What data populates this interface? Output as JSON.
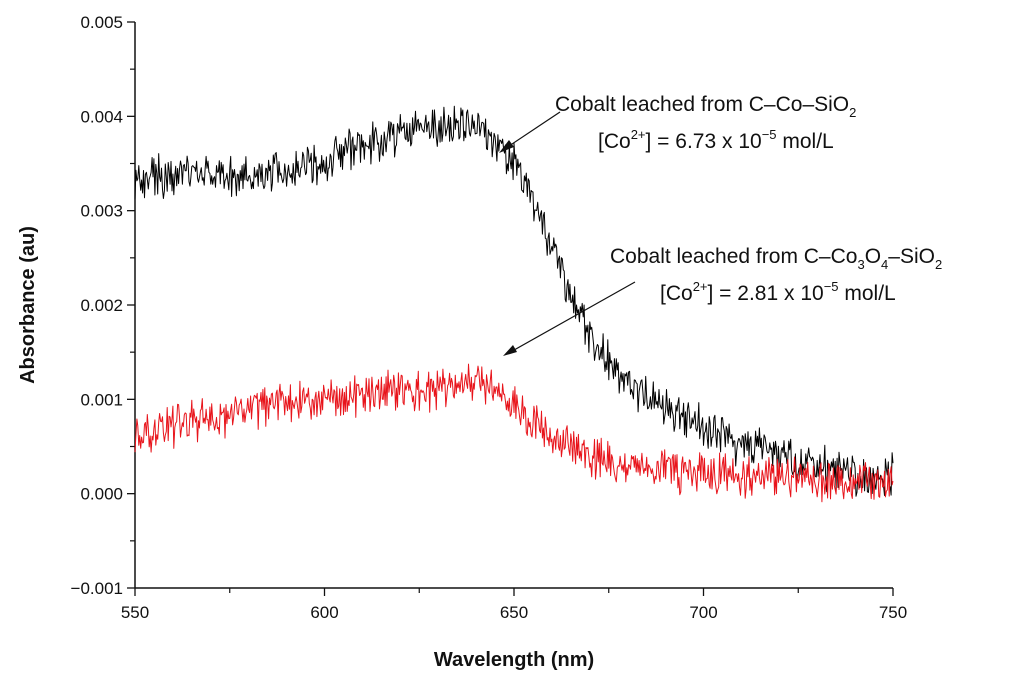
{
  "chart_data": {
    "type": "line",
    "xlabel": "Wavelength (nm)",
    "ylabel": "Absorbance (au)",
    "xlim": [
      550,
      750
    ],
    "ylim": [
      -0.001,
      0.005
    ],
    "xticks": [
      550,
      600,
      650,
      700,
      750
    ],
    "xtick_labels": [
      "550",
      "600",
      "650",
      "700",
      "750"
    ],
    "yticks": [
      -0.001,
      0.0,
      0.001,
      0.002,
      0.003,
      0.004,
      0.005
    ],
    "ytick_labels": [
      "−0.001",
      "0.000",
      "0.001",
      "0.002",
      "0.003",
      "0.004",
      "0.005"
    ],
    "grid": false,
    "series": [
      {
        "color": "#000000",
        "x": [
          550,
          560,
          570,
          580,
          590,
          600,
          610,
          620,
          630,
          635,
          640,
          645,
          650,
          655,
          660,
          665,
          670,
          675,
          680,
          690,
          700,
          710,
          720,
          730,
          740,
          750
        ],
        "y": [
          0.0033,
          0.0034,
          0.0034,
          0.00335,
          0.0034,
          0.0035,
          0.0037,
          0.0038,
          0.0039,
          0.0039,
          0.0039,
          0.0037,
          0.0035,
          0.0031,
          0.0026,
          0.0021,
          0.0017,
          0.0014,
          0.0012,
          0.0009,
          0.0007,
          0.0005,
          0.0004,
          0.0003,
          0.0002,
          0.0002
        ]
      },
      {
        "color": "#e8141b",
        "x": [
          550,
          560,
          570,
          580,
          590,
          600,
          610,
          620,
          630,
          640,
          645,
          650,
          660,
          670,
          680,
          690,
          700,
          710,
          720,
          730,
          740,
          750
        ],
        "y": [
          0.0006,
          0.0007,
          0.0008,
          0.0009,
          0.001,
          0.001,
          0.00105,
          0.0011,
          0.0011,
          0.0012,
          0.0011,
          0.0009,
          0.0006,
          0.0004,
          0.0003,
          0.00025,
          0.00022,
          0.0002,
          0.00018,
          0.00016,
          0.00012,
          0.0001
        ]
      }
    ],
    "annotations": [
      {
        "id": "black",
        "line1": [
          "Cobalt leached from C–Co–SiO",
          "2"
        ],
        "line2": [
          "[Co",
          "2+",
          "] = 6.73 x 10",
          "−5",
          " mol/L"
        ],
        "arrow_to": [
          642,
          0.00365
        ]
      },
      {
        "id": "red",
        "line1": [
          "Cobalt leached from C–Co",
          "3",
          "O",
          "4",
          "–SiO",
          "2"
        ],
        "line2": [
          "[Co",
          "2+",
          "] = 2.81 x 10",
          "−5",
          " mol/L"
        ],
        "arrow_to": [
          643,
          0.00145
        ]
      }
    ]
  }
}
